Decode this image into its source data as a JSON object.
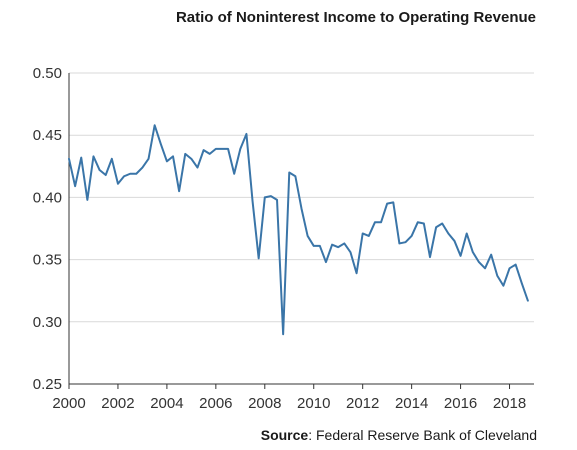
{
  "chart_data": {
    "type": "line",
    "title": "Ratio of Noninterest Income to Operating Revenue",
    "xlabel": "",
    "ylabel": "",
    "source_label": "Source",
    "source_text": ": Federal Reserve Bank of Cleveland",
    "xlim": [
      2000,
      2019
    ],
    "ylim": [
      0.25,
      0.5
    ],
    "x_ticks": [
      2000,
      2002,
      2004,
      2006,
      2008,
      2010,
      2012,
      2014,
      2016,
      2018
    ],
    "x_tick_labels": [
      "2000",
      "2002",
      "2004",
      "2006",
      "2008",
      "2010",
      "2012",
      "2014",
      "2016",
      "2018"
    ],
    "y_ticks": [
      0.25,
      0.3,
      0.35,
      0.4,
      0.45,
      0.5
    ],
    "y_tick_labels": [
      "0.25",
      "0.30",
      "0.35",
      "0.40",
      "0.45",
      "0.50"
    ],
    "grid": true,
    "colors": {
      "line": "#3a75a8",
      "grid": "#d9d9d9",
      "axis": "#333333"
    },
    "series": [
      {
        "x": [
          2000.0,
          2000.25,
          2000.5,
          2000.75,
          2001.0,
          2001.25,
          2001.5,
          2001.75,
          2002.0,
          2002.25,
          2002.5,
          2002.75,
          2003.0,
          2003.25,
          2003.5,
          2003.75,
          2004.0,
          2004.25,
          2004.5,
          2004.75,
          2005.0,
          2005.25,
          2005.5,
          2005.75,
          2006.0,
          2006.25,
          2006.5,
          2006.75,
          2007.0,
          2007.25,
          2007.5,
          2007.75,
          2008.0,
          2008.25,
          2008.5,
          2008.75,
          2009.0,
          2009.25,
          2009.5,
          2009.75,
          2010.0,
          2010.25,
          2010.5,
          2010.75,
          2011.0,
          2011.25,
          2011.5,
          2011.75,
          2012.0,
          2012.25,
          2012.5,
          2012.75,
          2013.0,
          2013.25,
          2013.5,
          2013.75,
          2014.0,
          2014.25,
          2014.5,
          2014.75,
          2015.0,
          2015.25,
          2015.5,
          2015.75,
          2016.0,
          2016.25,
          2016.5,
          2016.75,
          2017.0,
          2017.25,
          2017.5,
          2017.75,
          2018.0,
          2018.25,
          2018.5,
          2018.75
        ],
        "values": [
          0.431,
          0.409,
          0.432,
          0.398,
          0.433,
          0.422,
          0.418,
          0.431,
          0.411,
          0.417,
          0.419,
          0.419,
          0.424,
          0.431,
          0.458,
          0.443,
          0.429,
          0.433,
          0.405,
          0.435,
          0.431,
          0.424,
          0.438,
          0.435,
          0.439,
          0.439,
          0.439,
          0.419,
          0.439,
          0.451,
          0.397,
          0.351,
          0.4,
          0.401,
          0.398,
          0.29,
          0.42,
          0.417,
          0.391,
          0.369,
          0.361,
          0.361,
          0.348,
          0.362,
          0.36,
          0.363,
          0.356,
          0.339,
          0.371,
          0.369,
          0.38,
          0.38,
          0.395,
          0.396,
          0.363,
          0.364,
          0.369,
          0.38,
          0.379,
          0.352,
          0.376,
          0.379,
          0.371,
          0.365,
          0.353,
          0.371,
          0.356,
          0.348,
          0.343,
          0.354,
          0.337,
          0.329,
          0.343,
          0.346,
          0.331,
          0.317
        ]
      }
    ]
  }
}
